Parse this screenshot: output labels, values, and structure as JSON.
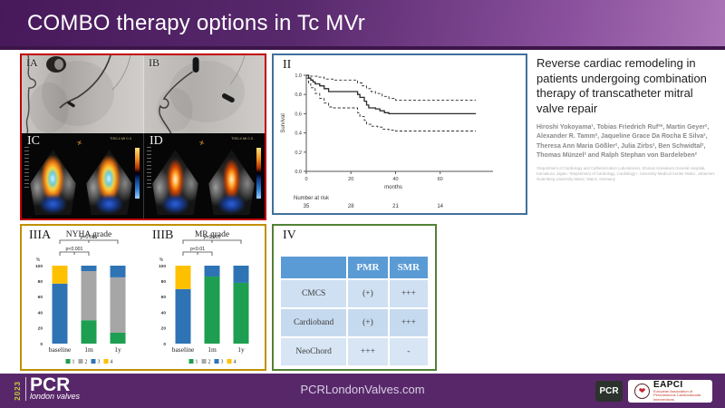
{
  "colors": {
    "panel_red": "#c00000",
    "panel_blue": "#41719c",
    "panel_gold": "#bf9000",
    "panel_green": "#538135",
    "km_line": "#2b2b2b",
    "grade_colors": {
      "1": "#1e9e50",
      "2": "#a6a6a6",
      "3": "#2e74b5",
      "4": "#ffc000"
    },
    "table_header_bg": "#5b9bd5",
    "table_row_colors": [
      "#cfe0f2",
      "#c6daef",
      "#d7e5f4"
    ]
  },
  "header": {
    "title": "COMBO therapy options in Tc MVr"
  },
  "figure_labels": {
    "ia": "IA",
    "ib": "IB",
    "ic": "IC",
    "id": "ID",
    "ii": "II",
    "iiia": "IIIA",
    "iiib": "IIIB",
    "iv": "IV"
  },
  "echo": {
    "meta_ic": "TIS0.4  MI 0.3",
    "meta_id": "TIS0.4  MI 0.3"
  },
  "paper": {
    "title": "Reverse cardiac remodeling in patients undergoing combination therapy of transcatheter mitral valve repair",
    "authors": "Hiroshi Yokoyama¹, Tobias Friedrich Ruf²*, Martin Geyer², Alexander R. Tamm², Jaqueline Grace Da Rocha E Silva², Theresa Ann Maria Gößler², Julia Zirbs², Ben Schwidtal², Thomas Münzel² and Ralph Stephan von Bardeleben²",
    "affiliations": "¹Department of Cardiology and Catheterization Laboratories, Shonan Kamakura General Hospital, Kamakura, Japan. ²Department of Cardiology, Cardiology I, University Medical Center Mainz, Johannes Gutenberg University Mainz, Mainz, Germany"
  },
  "chart_data": [
    {
      "id": "km",
      "type": "line",
      "panel_label": "II",
      "title": "",
      "xlabel": "months",
      "ylabel": "Survival",
      "xlim": [
        0,
        78
      ],
      "ylim": [
        0.0,
        1.0
      ],
      "xticks": [
        0,
        20,
        40,
        60
      ],
      "yticks": [
        0.0,
        0.2,
        0.4,
        0.6,
        0.8,
        1.0
      ],
      "grid": false,
      "number_at_risk_label": "Number at risk",
      "number_at_risk": [
        {
          "x": 0,
          "n": "35"
        },
        {
          "x": 20,
          "n": "28"
        },
        {
          "x": 40,
          "n": "21"
        },
        {
          "x": 60,
          "n": "14"
        }
      ],
      "series": [
        {
          "name": "survival",
          "style": "solid",
          "points": [
            [
              0,
              1.0
            ],
            [
              1,
              0.97
            ],
            [
              2,
              0.95
            ],
            [
              3,
              0.93
            ],
            [
              4,
              0.91
            ],
            [
              6,
              0.89
            ],
            [
              8,
              0.86
            ],
            [
              10,
              0.83
            ],
            [
              21,
              0.83
            ],
            [
              23,
              0.8
            ],
            [
              24,
              0.77
            ],
            [
              26,
              0.73
            ],
            [
              27,
              0.69
            ],
            [
              28,
              0.66
            ],
            [
              31,
              0.65
            ],
            [
              33,
              0.63
            ],
            [
              35,
              0.61
            ],
            [
              37,
              0.6
            ],
            [
              76,
              0.6
            ]
          ]
        },
        {
          "name": "ci-upper",
          "style": "dashed",
          "points": [
            [
              0,
              1.0
            ],
            [
              2,
              0.99
            ],
            [
              5,
              0.98
            ],
            [
              8,
              0.96
            ],
            [
              12,
              0.95
            ],
            [
              20,
              0.95
            ],
            [
              23,
              0.92
            ],
            [
              25,
              0.89
            ],
            [
              27,
              0.86
            ],
            [
              29,
              0.83
            ],
            [
              31,
              0.81
            ],
            [
              34,
              0.78
            ],
            [
              37,
              0.76
            ],
            [
              40,
              0.74
            ],
            [
              76,
              0.74
            ]
          ]
        },
        {
          "name": "ci-lower",
          "style": "dashed",
          "points": [
            [
              0,
              0.97
            ],
            [
              1,
              0.92
            ],
            [
              2,
              0.87
            ],
            [
              4,
              0.81
            ],
            [
              6,
              0.76
            ],
            [
              8,
              0.71
            ],
            [
              10,
              0.67
            ],
            [
              12,
              0.66
            ],
            [
              21,
              0.66
            ],
            [
              23,
              0.61
            ],
            [
              24,
              0.57
            ],
            [
              26,
              0.53
            ],
            [
              27,
              0.49
            ],
            [
              29,
              0.47
            ],
            [
              32,
              0.46
            ],
            [
              34,
              0.44
            ],
            [
              37,
              0.43
            ],
            [
              40,
              0.42
            ],
            [
              76,
              0.42
            ]
          ]
        }
      ]
    },
    {
      "id": "nyha",
      "type": "bar",
      "panel_label": "IIIA",
      "title": "NYHA grade",
      "ylabel": "%",
      "ylim": [
        0,
        100
      ],
      "yticks": [
        0,
        20,
        40,
        60,
        80,
        100
      ],
      "categories": [
        "baseline",
        "1m",
        "1y"
      ],
      "legend": [
        "1",
        "2",
        "3",
        "4"
      ],
      "series": [
        {
          "name": "1",
          "values": [
            0,
            30,
            14
          ]
        },
        {
          "name": "2",
          "values": [
            0,
            63,
            71
          ]
        },
        {
          "name": "3",
          "values": [
            77,
            7,
            15
          ]
        },
        {
          "name": "4",
          "values": [
            23,
            0,
            0
          ]
        }
      ],
      "brackets": [
        {
          "from": 0,
          "to": 1,
          "label": "p<0.001"
        },
        {
          "from": 0,
          "to": 2,
          "label": "p<0.001"
        }
      ]
    },
    {
      "id": "mr",
      "type": "bar",
      "panel_label": "IIIB",
      "title": "MR grade",
      "ylabel": "%",
      "ylim": [
        0,
        100
      ],
      "yticks": [
        0,
        20,
        40,
        60,
        80,
        100
      ],
      "categories": [
        "baseline",
        "1m",
        "1y"
      ],
      "legend": [
        "1",
        "2",
        "3",
        "4"
      ],
      "series": [
        {
          "name": "1",
          "values": [
            0,
            86,
            78
          ]
        },
        {
          "name": "2",
          "values": [
            0,
            0,
            0
          ]
        },
        {
          "name": "3",
          "values": [
            70,
            14,
            22
          ]
        },
        {
          "name": "4",
          "values": [
            30,
            0,
            0
          ]
        }
      ],
      "brackets": [
        {
          "from": 0,
          "to": 1,
          "label": "p<0.01"
        },
        {
          "from": 0,
          "to": 2,
          "label": "p<0.001"
        }
      ]
    }
  ],
  "table": {
    "panel_label": "IV",
    "columns": [
      "",
      "PMR",
      "SMR"
    ],
    "rows": [
      {
        "label": "CMCS",
        "pmr": "(+)",
        "smr": "+++"
      },
      {
        "label": "Cardioband",
        "pmr": "(+)",
        "smr": "+++"
      },
      {
        "label": "NeoChord",
        "pmr": "+++",
        "smr": "-"
      }
    ]
  },
  "footer": {
    "year": "2023",
    "brand": "PCR",
    "brand_sub": "london valves",
    "website": "PCRLondonValves.com",
    "pcr_box": "PCR",
    "eapci": "EAPCI",
    "eapci_sub": "European Association of Percutaneous Cardiovascular Interventions"
  }
}
